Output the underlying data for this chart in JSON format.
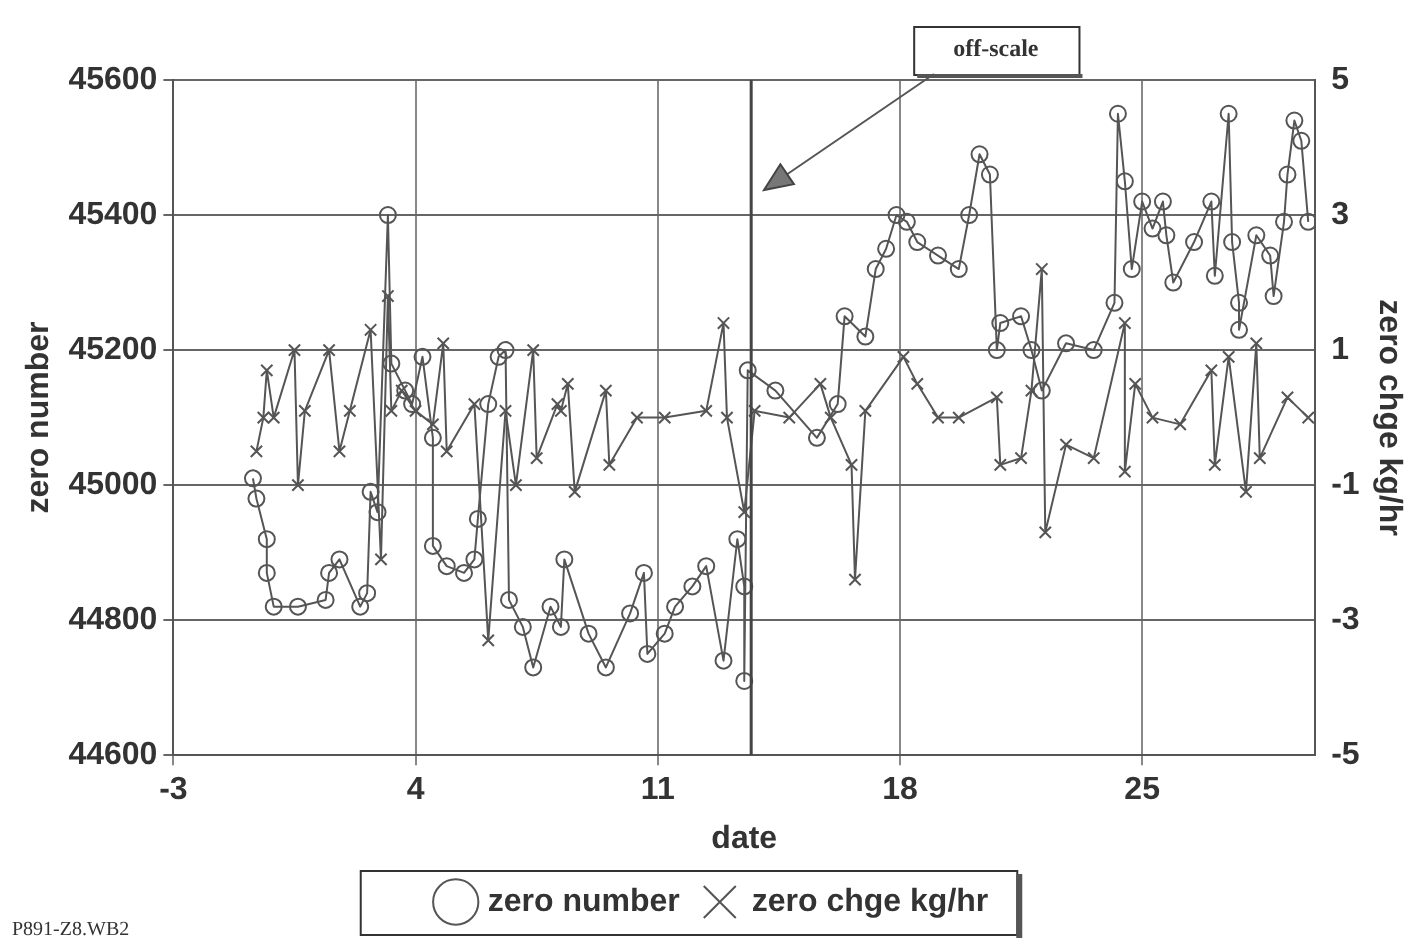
{
  "chart_data": {
    "type": "line",
    "xlabel": "date",
    "ylabel": "zero number",
    "y2label": "zero chge kg/hr",
    "xlim": [
      -3,
      30
    ],
    "xticks": [
      -3,
      4,
      11,
      18,
      25
    ],
    "ylim": [
      44600,
      45600
    ],
    "yticks": [
      44600,
      44800,
      45000,
      45200,
      45400,
      45600
    ],
    "y2lim": [
      -5,
      5
    ],
    "y2ticks": [
      -5,
      -3,
      -1,
      1,
      3,
      5
    ],
    "grid": true,
    "legend": "bottom",
    "line_style": "solid",
    "ref_lines": [
      {
        "axis": "x",
        "value": 13.7,
        "label": null,
        "color": "#444444"
      }
    ],
    "annotations": [
      "off-scale",
      "P891-Z8.WB2"
    ],
    "series": [
      {
        "name": "zero number",
        "color": "#555555",
        "marker": "circle",
        "x": [
          -0.7,
          -0.6,
          -0.3,
          -0.3,
          -0.1,
          0.6,
          1.4,
          1.5,
          1.8,
          2.4,
          2.6,
          2.7,
          2.9,
          3.2,
          3.3,
          3.7,
          3.9,
          4.2,
          4.5,
          4.5,
          4.9,
          5.4,
          5.7,
          5.8,
          6.1,
          6.4,
          6.6,
          6.7,
          7.1,
          7.4,
          7.9,
          8.2,
          8.3,
          9.0,
          9.5,
          10.2,
          10.6,
          10.7,
          11.2,
          11.5,
          12.0,
          12.4,
          12.9,
          13.3,
          13.5,
          13.5,
          13.6,
          14.4,
          15.6,
          16.2,
          16.4,
          17.0,
          17.3,
          17.6,
          17.9,
          18.2,
          18.5,
          19.1,
          19.7,
          20.0,
          20.3,
          20.6,
          20.8,
          20.9,
          21.5,
          21.8,
          22.1,
          22.8,
          23.6,
          24.2,
          24.3,
          24.5,
          24.7,
          25.0,
          25.3,
          25.6,
          25.7,
          25.9,
          26.5,
          27.0,
          27.1,
          27.5,
          27.6,
          27.8,
          27.8,
          28.3,
          28.7,
          28.8,
          29.1,
          29.2,
          29.4,
          29.6,
          29.8
        ],
        "values": [
          45010,
          44980,
          44920,
          44870,
          44820,
          44820,
          44830,
          44870,
          44890,
          44820,
          44840,
          44990,
          44960,
          45400,
          45180,
          45140,
          45120,
          45190,
          45070,
          44910,
          44880,
          44870,
          44890,
          44950,
          45120,
          45190,
          45200,
          44830,
          44790,
          44730,
          44820,
          44790,
          44890,
          44780,
          44730,
          44810,
          44870,
          44750,
          44780,
          44820,
          44850,
          44880,
          44740,
          44920,
          44850,
          44710,
          45170,
          45140,
          45070,
          45120,
          45250,
          45220,
          45320,
          45350,
          45400,
          45390,
          45360,
          45340,
          45320,
          45400,
          45490,
          45460,
          45200,
          45240,
          45250,
          45200,
          45140,
          45210,
          45200,
          45270,
          45550,
          45450,
          45320,
          45420,
          45380,
          45420,
          45370,
          45300,
          45360,
          45420,
          45310,
          45550,
          45360,
          45270,
          45230,
          45370,
          45340,
          45280,
          45390,
          45460,
          45540,
          45510,
          45390
        ]
      },
      {
        "name": "zero chge kg/hr",
        "color": "#555555",
        "marker": "cross",
        "axis": "y2",
        "x": [
          -0.6,
          -0.4,
          -0.3,
          -0.1,
          0.5,
          0.6,
          0.8,
          1.5,
          1.8,
          2.1,
          2.7,
          3.0,
          3.2,
          3.3,
          3.6,
          4.0,
          4.5,
          4.8,
          4.9,
          5.7,
          6.1,
          6.6,
          6.9,
          7.4,
          7.5,
          8.1,
          8.2,
          8.4,
          8.6,
          9.5,
          9.6,
          10.4,
          11.2,
          12.4,
          12.9,
          13.0,
          13.5,
          13.8,
          14.8,
          15.7,
          16.0,
          16.6,
          16.7,
          17.0,
          18.1,
          18.5,
          19.1,
          19.7,
          20.8,
          20.9,
          21.5,
          21.8,
          22.1,
          22.2,
          22.8,
          23.6,
          24.5,
          24.5,
          24.8,
          25.3,
          26.1,
          27.0,
          27.1,
          27.5,
          28.0,
          28.3,
          28.4,
          29.2,
          29.8
        ],
        "values": [
          -0.5,
          0.0,
          0.7,
          0.0,
          1.0,
          -1.0,
          0.1,
          1.0,
          -0.5,
          0.1,
          1.3,
          -2.1,
          1.8,
          0.1,
          0.4,
          0.1,
          -0.1,
          1.1,
          -0.5,
          0.2,
          -3.3,
          0.1,
          -1.0,
          1.0,
          -0.6,
          0.2,
          0.1,
          0.5,
          -1.1,
          0.4,
          -0.7,
          0.0,
          0.0,
          0.1,
          1.4,
          0.0,
          -1.4,
          0.1,
          0.0,
          0.5,
          0.0,
          -0.7,
          -2.4,
          0.1,
          0.9,
          0.5,
          0.0,
          0.0,
          0.3,
          -0.7,
          -0.6,
          0.4,
          2.2,
          -1.7,
          -0.4,
          -0.6,
          1.4,
          -0.8,
          0.5,
          0.0,
          -0.1,
          0.7,
          -0.7,
          0.9,
          -1.1,
          1.1,
          -0.6,
          0.3,
          0.0
        ]
      }
    ]
  }
}
